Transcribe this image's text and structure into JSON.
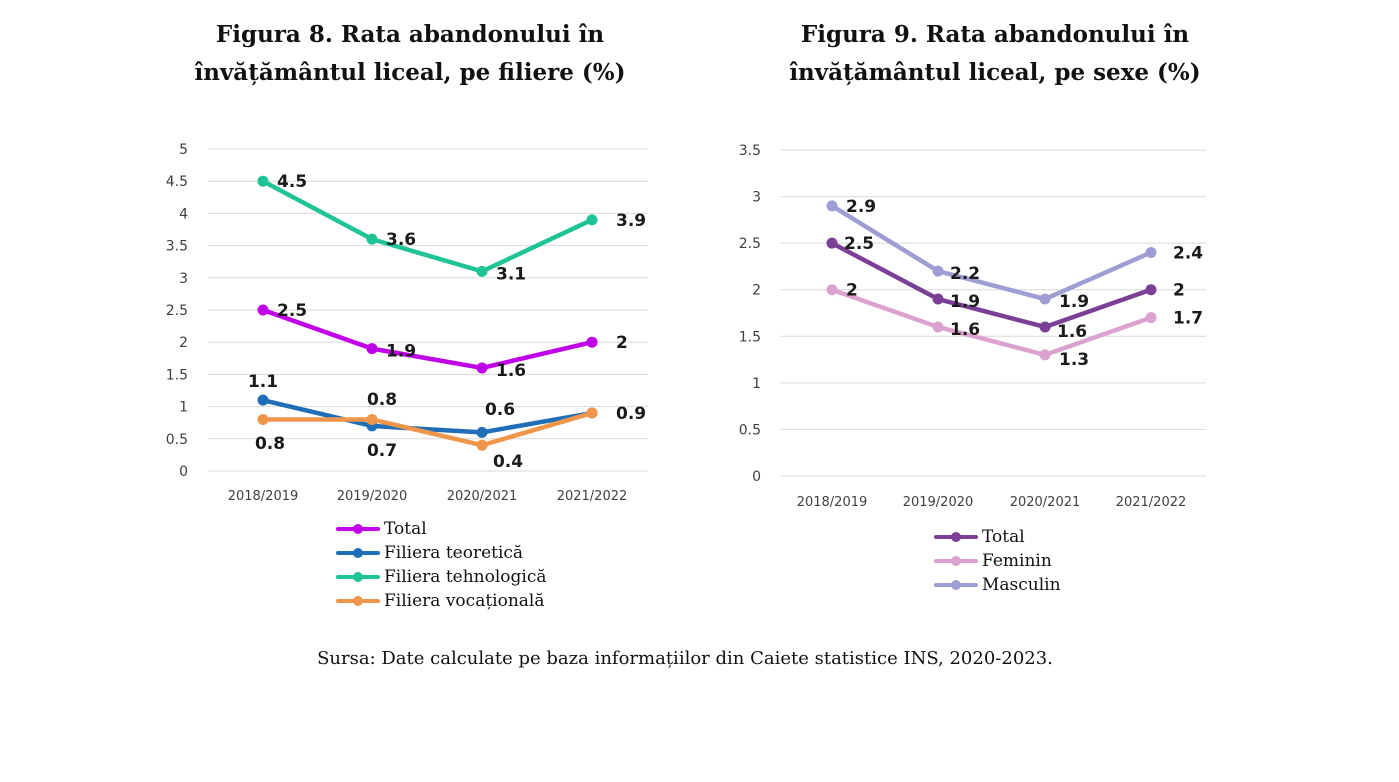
{
  "chart_data": [
    {
      "id": "fig8",
      "type": "line",
      "title": "Figura 8. Rata abandonului în învățământul liceal, pe filiere (%)",
      "title_lines": [
        "Figura 8. Rata abandonului în",
        "învățământul liceal, pe filiere (%)"
      ],
      "xlabel": "",
      "ylabel": "",
      "categories": [
        "2018/2019",
        "2019/2020",
        "2020/2021",
        "2021/2022"
      ],
      "ylim": [
        0,
        5
      ],
      "yticks": [
        0,
        0.5,
        1,
        1.5,
        2,
        2.5,
        3,
        3.5,
        4,
        4.5,
        5
      ],
      "grid": true,
      "legend_position": "bottom",
      "series": [
        {
          "name": "Total",
          "color": "#c000e8",
          "values": [
            2.5,
            1.9,
            1.6,
            2
          ]
        },
        {
          "name": "Filiera teoretică",
          "color": "#1f6fb8",
          "values": [
            1.1,
            0.7,
            0.6,
            0.9
          ]
        },
        {
          "name": "Filiera tehnologică",
          "color": "#1fc496",
          "values": [
            4.5,
            3.6,
            3.1,
            3.9
          ]
        },
        {
          "name": "Filiera vocațională",
          "color": "#f0964a",
          "values": [
            0.8,
            0.8,
            0.4,
            0.9
          ]
        }
      ]
    },
    {
      "id": "fig9",
      "type": "line",
      "title": "Figura 9. Rata abandonului în învățământul liceal, pe sexe (%)",
      "title_lines": [
        "Figura 9. Rata abandonului în",
        "învățământul liceal, pe sexe (%)"
      ],
      "xlabel": "",
      "ylabel": "",
      "categories": [
        "2018/2019",
        "2019/2020",
        "2020/2021",
        "2021/2022"
      ],
      "ylim": [
        0,
        3.5
      ],
      "yticks": [
        0,
        0.5,
        1,
        1.5,
        2,
        2.5,
        3,
        3.5
      ],
      "grid": true,
      "legend_position": "bottom",
      "series": [
        {
          "name": "Total",
          "color": "#7b3f96",
          "values": [
            2.5,
            1.9,
            1.6,
            2
          ]
        },
        {
          "name": "Feminin",
          "color": "#dba2d0",
          "values": [
            2,
            1.6,
            1.3,
            1.7
          ]
        },
        {
          "name": "Masculin",
          "color": "#9e9ed4",
          "values": [
            2.9,
            2.2,
            1.9,
            2.4
          ]
        }
      ]
    }
  ],
  "source": "Sursa: Date calculate pe baza informațiilor din Caiete statistice INS, 2020-2023."
}
